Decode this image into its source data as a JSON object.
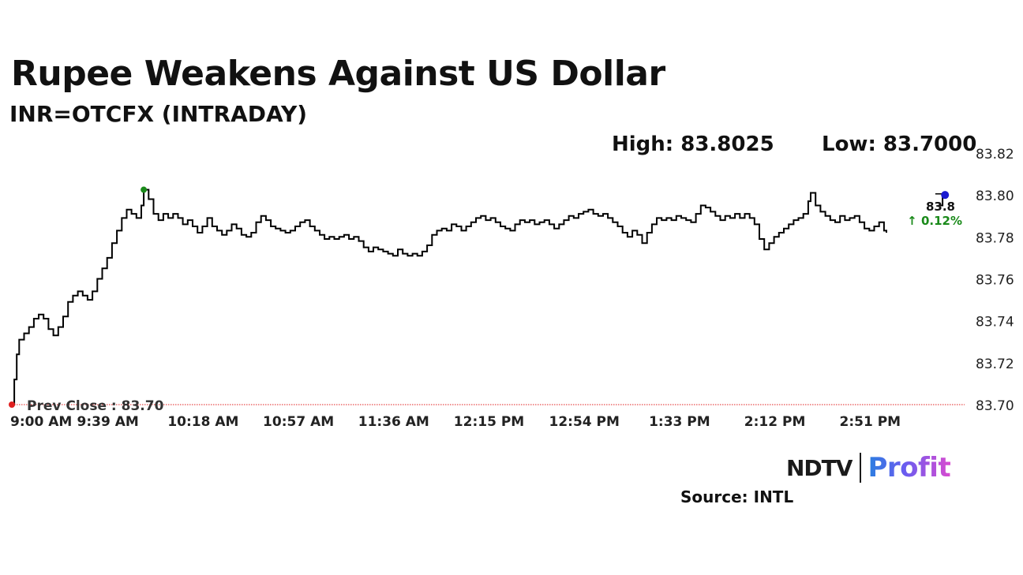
{
  "title": "Rupee Weakens Against US Dollar",
  "subtitle": "INR=OTCFX (INTRADAY)",
  "high_label": "High: 83.8025",
  "low_label": "Low: 83.7000",
  "source": "Source: INTL",
  "logo": {
    "left": "NDTV",
    "right": "Profit"
  },
  "colors": {
    "line": "#000000",
    "prev_close": "#e02020",
    "high_marker": "#1a8a1a",
    "last_marker": "#1a1ad0",
    "change": "#1a8a1a"
  },
  "chart_data": {
    "type": "line",
    "title": "Rupee Weakens Against US Dollar",
    "subtitle": "INR=OTCFX (INTRADAY)",
    "xlabel": "",
    "ylabel": "",
    "ylim": [
      83.7,
      83.82
    ],
    "y_ticks": [
      "83.82",
      "83.80",
      "83.78",
      "83.76",
      "83.74",
      "83.72",
      "83.70"
    ],
    "x_ticks": [
      "9:00 AM",
      "9:39 AM",
      "10:18 AM",
      "10:57 AM",
      "11:36 AM",
      "12:15 PM",
      "12:54 PM",
      "1:33 PM",
      "2:12 PM",
      "2:51 PM"
    ],
    "x_tick_minutes": [
      0,
      39,
      78,
      117,
      156,
      195,
      234,
      273,
      312,
      351
    ],
    "x_range_minutes": [
      0,
      390
    ],
    "prev_close": 83.7,
    "prev_close_label": "Prev Close : 83.70",
    "last_value_label": "83.8",
    "change_label": "↑ 0.12%",
    "high": 83.8025,
    "low": 83.7,
    "grid": false,
    "points": [
      [
        0,
        83.7
      ],
      [
        1,
        83.712
      ],
      [
        2,
        83.724
      ],
      [
        3,
        83.731
      ],
      [
        5,
        83.734
      ],
      [
        7,
        83.737
      ],
      [
        9,
        83.741
      ],
      [
        11,
        83.743
      ],
      [
        13,
        83.741
      ],
      [
        15,
        83.736
      ],
      [
        17,
        83.733
      ],
      [
        19,
        83.737
      ],
      [
        21,
        83.742
      ],
      [
        23,
        83.749
      ],
      [
        25,
        83.752
      ],
      [
        27,
        83.754
      ],
      [
        29,
        83.752
      ],
      [
        31,
        83.75
      ],
      [
        33,
        83.754
      ],
      [
        35,
        83.76
      ],
      [
        37,
        83.765
      ],
      [
        39,
        83.77
      ],
      [
        41,
        83.777
      ],
      [
        43,
        83.783
      ],
      [
        45,
        83.789
      ],
      [
        47,
        83.793
      ],
      [
        49,
        83.791
      ],
      [
        51,
        83.789
      ],
      [
        53,
        83.795
      ],
      [
        54,
        83.8025
      ],
      [
        56,
        83.798
      ],
      [
        58,
        83.791
      ],
      [
        60,
        83.788
      ],
      [
        62,
        83.791
      ],
      [
        64,
        83.789
      ],
      [
        66,
        83.791
      ],
      [
        68,
        83.789
      ],
      [
        70,
        83.786
      ],
      [
        72,
        83.788
      ],
      [
        74,
        83.785
      ],
      [
        76,
        83.782
      ],
      [
        78,
        83.785
      ],
      [
        80,
        83.789
      ],
      [
        82,
        83.785
      ],
      [
        84,
        83.783
      ],
      [
        86,
        83.781
      ],
      [
        88,
        83.783
      ],
      [
        90,
        83.786
      ],
      [
        92,
        83.784
      ],
      [
        94,
        83.781
      ],
      [
        96,
        83.78
      ],
      [
        98,
        83.782
      ],
      [
        100,
        83.787
      ],
      [
        102,
        83.79
      ],
      [
        104,
        83.788
      ],
      [
        106,
        83.785
      ],
      [
        108,
        83.784
      ],
      [
        110,
        83.783
      ],
      [
        112,
        83.782
      ],
      [
        114,
        83.783
      ],
      [
        116,
        83.785
      ],
      [
        118,
        83.787
      ],
      [
        120,
        83.788
      ],
      [
        122,
        83.785
      ],
      [
        124,
        83.783
      ],
      [
        126,
        83.781
      ],
      [
        128,
        83.779
      ],
      [
        130,
        83.78
      ],
      [
        132,
        83.779
      ],
      [
        134,
        83.78
      ],
      [
        136,
        83.781
      ],
      [
        138,
        83.779
      ],
      [
        140,
        83.78
      ],
      [
        142,
        83.778
      ],
      [
        144,
        83.775
      ],
      [
        146,
        83.773
      ],
      [
        148,
        83.775
      ],
      [
        150,
        83.774
      ],
      [
        152,
        83.773
      ],
      [
        154,
        83.772
      ],
      [
        156,
        83.771
      ],
      [
        158,
        83.774
      ],
      [
        160,
        83.772
      ],
      [
        162,
        83.771
      ],
      [
        164,
        83.772
      ],
      [
        166,
        83.771
      ],
      [
        168,
        83.773
      ],
      [
        170,
        83.776
      ],
      [
        172,
        83.781
      ],
      [
        174,
        83.783
      ],
      [
        176,
        83.784
      ],
      [
        178,
        83.783
      ],
      [
        180,
        83.786
      ],
      [
        182,
        83.785
      ],
      [
        184,
        83.783
      ],
      [
        186,
        83.785
      ],
      [
        188,
        83.787
      ],
      [
        190,
        83.789
      ],
      [
        192,
        83.79
      ],
      [
        194,
        83.788
      ],
      [
        196,
        83.789
      ],
      [
        198,
        83.787
      ],
      [
        200,
        83.785
      ],
      [
        202,
        83.784
      ],
      [
        204,
        83.783
      ],
      [
        206,
        83.786
      ],
      [
        208,
        83.788
      ],
      [
        210,
        83.787
      ],
      [
        212,
        83.788
      ],
      [
        214,
        83.786
      ],
      [
        216,
        83.787
      ],
      [
        218,
        83.788
      ],
      [
        220,
        83.786
      ],
      [
        222,
        83.784
      ],
      [
        224,
        83.786
      ],
      [
        226,
        83.788
      ],
      [
        228,
        83.79
      ],
      [
        230,
        83.789
      ],
      [
        232,
        83.791
      ],
      [
        234,
        83.792
      ],
      [
        236,
        83.793
      ],
      [
        238,
        83.791
      ],
      [
        240,
        83.79
      ],
      [
        242,
        83.791
      ],
      [
        244,
        83.789
      ],
      [
        246,
        83.787
      ],
      [
        248,
        83.785
      ],
      [
        250,
        83.782
      ],
      [
        252,
        83.78
      ],
      [
        254,
        83.783
      ],
      [
        256,
        83.781
      ],
      [
        258,
        83.777
      ],
      [
        260,
        83.782
      ],
      [
        262,
        83.786
      ],
      [
        264,
        83.789
      ],
      [
        266,
        83.788
      ],
      [
        268,
        83.789
      ],
      [
        270,
        83.788
      ],
      [
        272,
        83.79
      ],
      [
        274,
        83.789
      ],
      [
        276,
        83.788
      ],
      [
        278,
        83.787
      ],
      [
        280,
        83.791
      ],
      [
        282,
        83.795
      ],
      [
        284,
        83.794
      ],
      [
        286,
        83.792
      ],
      [
        288,
        83.79
      ],
      [
        290,
        83.788
      ],
      [
        292,
        83.79
      ],
      [
        294,
        83.789
      ],
      [
        296,
        83.791
      ],
      [
        298,
        83.789
      ],
      [
        300,
        83.791
      ],
      [
        302,
        83.789
      ],
      [
        304,
        83.786
      ],
      [
        306,
        83.779
      ],
      [
        308,
        83.774
      ],
      [
        310,
        83.777
      ],
      [
        312,
        83.78
      ],
      [
        314,
        83.782
      ],
      [
        316,
        83.784
      ],
      [
        318,
        83.786
      ],
      [
        320,
        83.788
      ],
      [
        322,
        83.789
      ],
      [
        324,
        83.791
      ],
      [
        326,
        83.797
      ],
      [
        327,
        83.801
      ],
      [
        329,
        83.795
      ],
      [
        331,
        83.792
      ],
      [
        333,
        83.79
      ],
      [
        335,
        83.788
      ],
      [
        337,
        83.787
      ],
      [
        339,
        83.79
      ],
      [
        341,
        83.788
      ],
      [
        343,
        83.789
      ],
      [
        345,
        83.79
      ],
      [
        347,
        83.787
      ],
      [
        349,
        83.784
      ],
      [
        351,
        83.783
      ],
      [
        353,
        83.785
      ],
      [
        355,
        83.787
      ],
      [
        357,
        83.783
      ],
      [
        358,
        83.782
      ]
    ],
    "tail_points": [
      [
        380,
        83.795
      ],
      [
        381,
        83.8
      ],
      [
        382,
        83.8
      ]
    ]
  }
}
